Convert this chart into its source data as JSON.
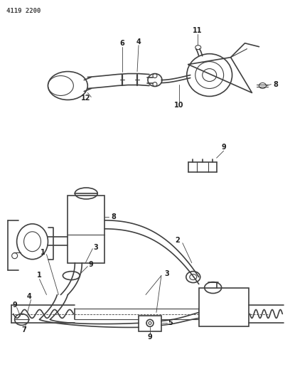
{
  "title_text": "4119 2200",
  "background_color": "#ffffff",
  "line_color": "#404040",
  "label_color": "#222222",
  "figsize": [
    4.08,
    5.33
  ],
  "dpi": 100
}
